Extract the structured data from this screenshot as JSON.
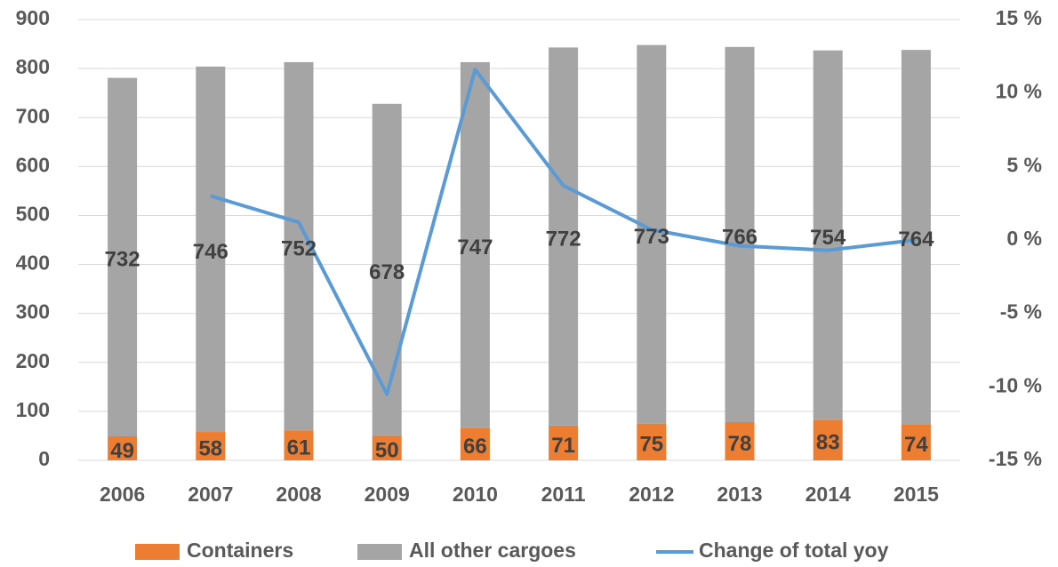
{
  "chart_data": {
    "type": "bar_line",
    "categories": [
      "2006",
      "2007",
      "2008",
      "2009",
      "2010",
      "2011",
      "2012",
      "2013",
      "2014",
      "2015"
    ],
    "series": [
      {
        "name": "Containers",
        "color": "#ed7d31",
        "values": [
          49,
          58,
          61,
          50,
          66,
          71,
          75,
          78,
          83,
          74
        ]
      },
      {
        "name": "All other cargoes",
        "color": "#a5a5a5",
        "values": [
          732,
          746,
          752,
          678,
          747,
          772,
          773,
          766,
          754,
          764
        ]
      },
      {
        "name": "Change of total yoy",
        "color": "#5b9bd5",
        "axis": "y2",
        "values": [
          null,
          3.0,
          1.2,
          -10.5,
          11.6,
          3.7,
          0.7,
          -0.4,
          -0.7,
          0.0
        ]
      }
    ],
    "ylim": [
      0,
      900
    ],
    "yticks": [
      0,
      100,
      200,
      300,
      400,
      500,
      600,
      700,
      800,
      900
    ],
    "y2lim": [
      -15,
      15
    ],
    "y2ticks": [
      {
        "value": -15,
        "label": "-15 %"
      },
      {
        "value": -10,
        "label": "-10 %"
      },
      {
        "value": -5,
        "label": "-5 %"
      },
      {
        "value": 0,
        "label": "0 %"
      },
      {
        "value": 5,
        "label": "5 %"
      },
      {
        "value": 10,
        "label": "10 %"
      },
      {
        "value": 15,
        "label": "15 %"
      }
    ],
    "grid": true,
    "legend": "bottom"
  }
}
